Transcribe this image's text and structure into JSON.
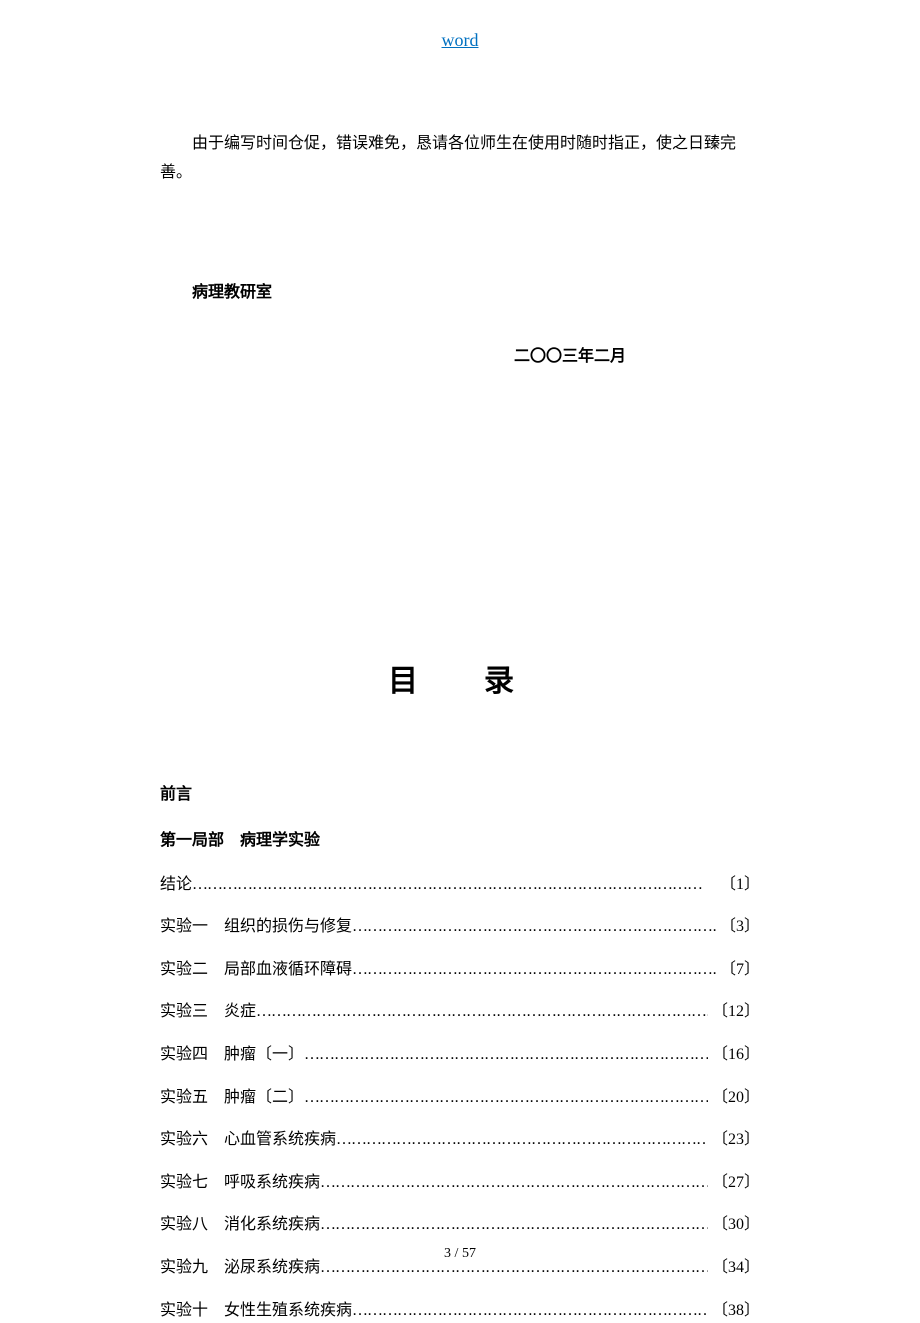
{
  "header": {
    "link_text": "word"
  },
  "intro": {
    "text": "由于编写时间仓促，错误难免，恳请各位师生在使用时随时指正，使之日臻完善。"
  },
  "department": "病理教研室",
  "date": "二〇〇三年二月",
  "toc": {
    "title": "目　录",
    "preface": "前言",
    "section_heading": "第一局部　病理学实验",
    "entries": [
      {
        "label": "结论",
        "title": "",
        "page": "〔1〕"
      },
      {
        "label": "实验一",
        "title": "组织的损伤与修复",
        "page": "〔3〕"
      },
      {
        "label": "实验二",
        "title": "局部血液循环障碍",
        "page": "〔7〕"
      },
      {
        "label": "实验三",
        "title": "炎症",
        "page": "〔12〕"
      },
      {
        "label": "实验四",
        "title": "肿瘤〔一〕",
        "page": "〔16〕"
      },
      {
        "label": "实验五",
        "title": "肿瘤〔二〕",
        "page": "〔20〕"
      },
      {
        "label": "实验六",
        "title": "心血管系统疾病",
        "page": "〔23〕"
      },
      {
        "label": "实验七",
        "title": "呼吸系统疾病",
        "page": "〔27〕"
      },
      {
        "label": "实验八",
        "title": "消化系统疾病",
        "page": "〔30〕"
      },
      {
        "label": "实验九",
        "title": "泌尿系统疾病",
        "page": "〔34〕"
      },
      {
        "label": "实验十",
        "title": "女性生殖系统疾病",
        "page": "〔38〕"
      }
    ]
  },
  "footer": {
    "page_number": "3 / 57"
  },
  "dots": "…………………………………………………………………………………………"
}
